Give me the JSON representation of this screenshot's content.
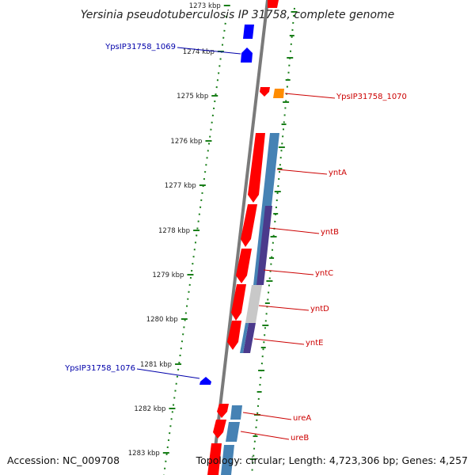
{
  "title": "Yersinia pseudotuberculosis IP 31758, complete genome",
  "footer": {
    "accession": "Accession: NC_009708",
    "topology": "Topology: circular; Length: 4,723,306 bp; Genes: 4,257"
  },
  "colors": {
    "forward_cds": "#0000ff",
    "reverse_cds": "#ff0000",
    "orange_cds": "#ff8c00",
    "blast_steel": "#4682b4",
    "blast_purple": "#4b3a8c",
    "blast_gray": "#c8c8c8",
    "tick_green": "#1a7f1a",
    "backbone": "#808080"
  },
  "ticks": [
    "1273 kbp",
    "1274 kbp",
    "1275 kbp",
    "1276 kbp",
    "1277 kbp",
    "1278 kbp",
    "1279 kbp",
    "1280 kbp",
    "1281 kbp",
    "1282 kbp",
    "1283 kbp"
  ],
  "labels": {
    "left": [
      {
        "text": "YpsIP31758_1069",
        "color": "#0000aa"
      },
      {
        "text": "YpsIP31758_1076",
        "color": "#0000aa"
      }
    ],
    "right": [
      {
        "text": "YpsIP31758_1070",
        "color": "#cc0000"
      },
      {
        "text": "yntA",
        "color": "#cc0000"
      },
      {
        "text": "yntB",
        "color": "#cc0000"
      },
      {
        "text": "yntC",
        "color": "#cc0000"
      },
      {
        "text": "yntD",
        "color": "#cc0000"
      },
      {
        "text": "yntE",
        "color": "#cc0000"
      },
      {
        "text": "ureA",
        "color": "#cc0000"
      },
      {
        "text": "ureB",
        "color": "#cc0000"
      }
    ]
  }
}
